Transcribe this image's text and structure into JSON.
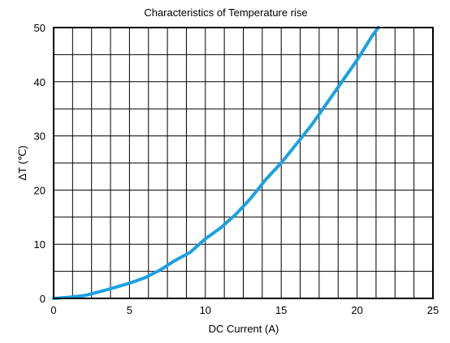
{
  "chart_data": {
    "type": "line",
    "title": "Characteristics of Temperature  rise",
    "xlabel": "DC Current  (A)",
    "ylabel": "ΔT (℃)",
    "xlim": [
      0,
      25
    ],
    "ylim": [
      0,
      50
    ],
    "grid": true,
    "x_ticks": [
      0,
      5,
      10,
      15,
      20,
      25
    ],
    "y_ticks": [
      0,
      10,
      20,
      30,
      40,
      50
    ],
    "x_minor_step": 1.25,
    "y_minor_step": 5,
    "series": [
      {
        "color": "#1BA1E2",
        "x": [
          0,
          1,
          2,
          3,
          4,
          5,
          6,
          7,
          8,
          9,
          10,
          11,
          12,
          13,
          14,
          15,
          16,
          17,
          18,
          19,
          20,
          21,
          21.4
        ],
        "y": [
          0,
          0.2,
          0.5,
          1.2,
          2,
          2.8,
          3.8,
          5.2,
          7,
          8.5,
          11,
          13,
          15.5,
          18.5,
          22,
          25,
          28.5,
          32,
          36,
          40,
          44,
          48.5,
          50
        ]
      }
    ]
  }
}
